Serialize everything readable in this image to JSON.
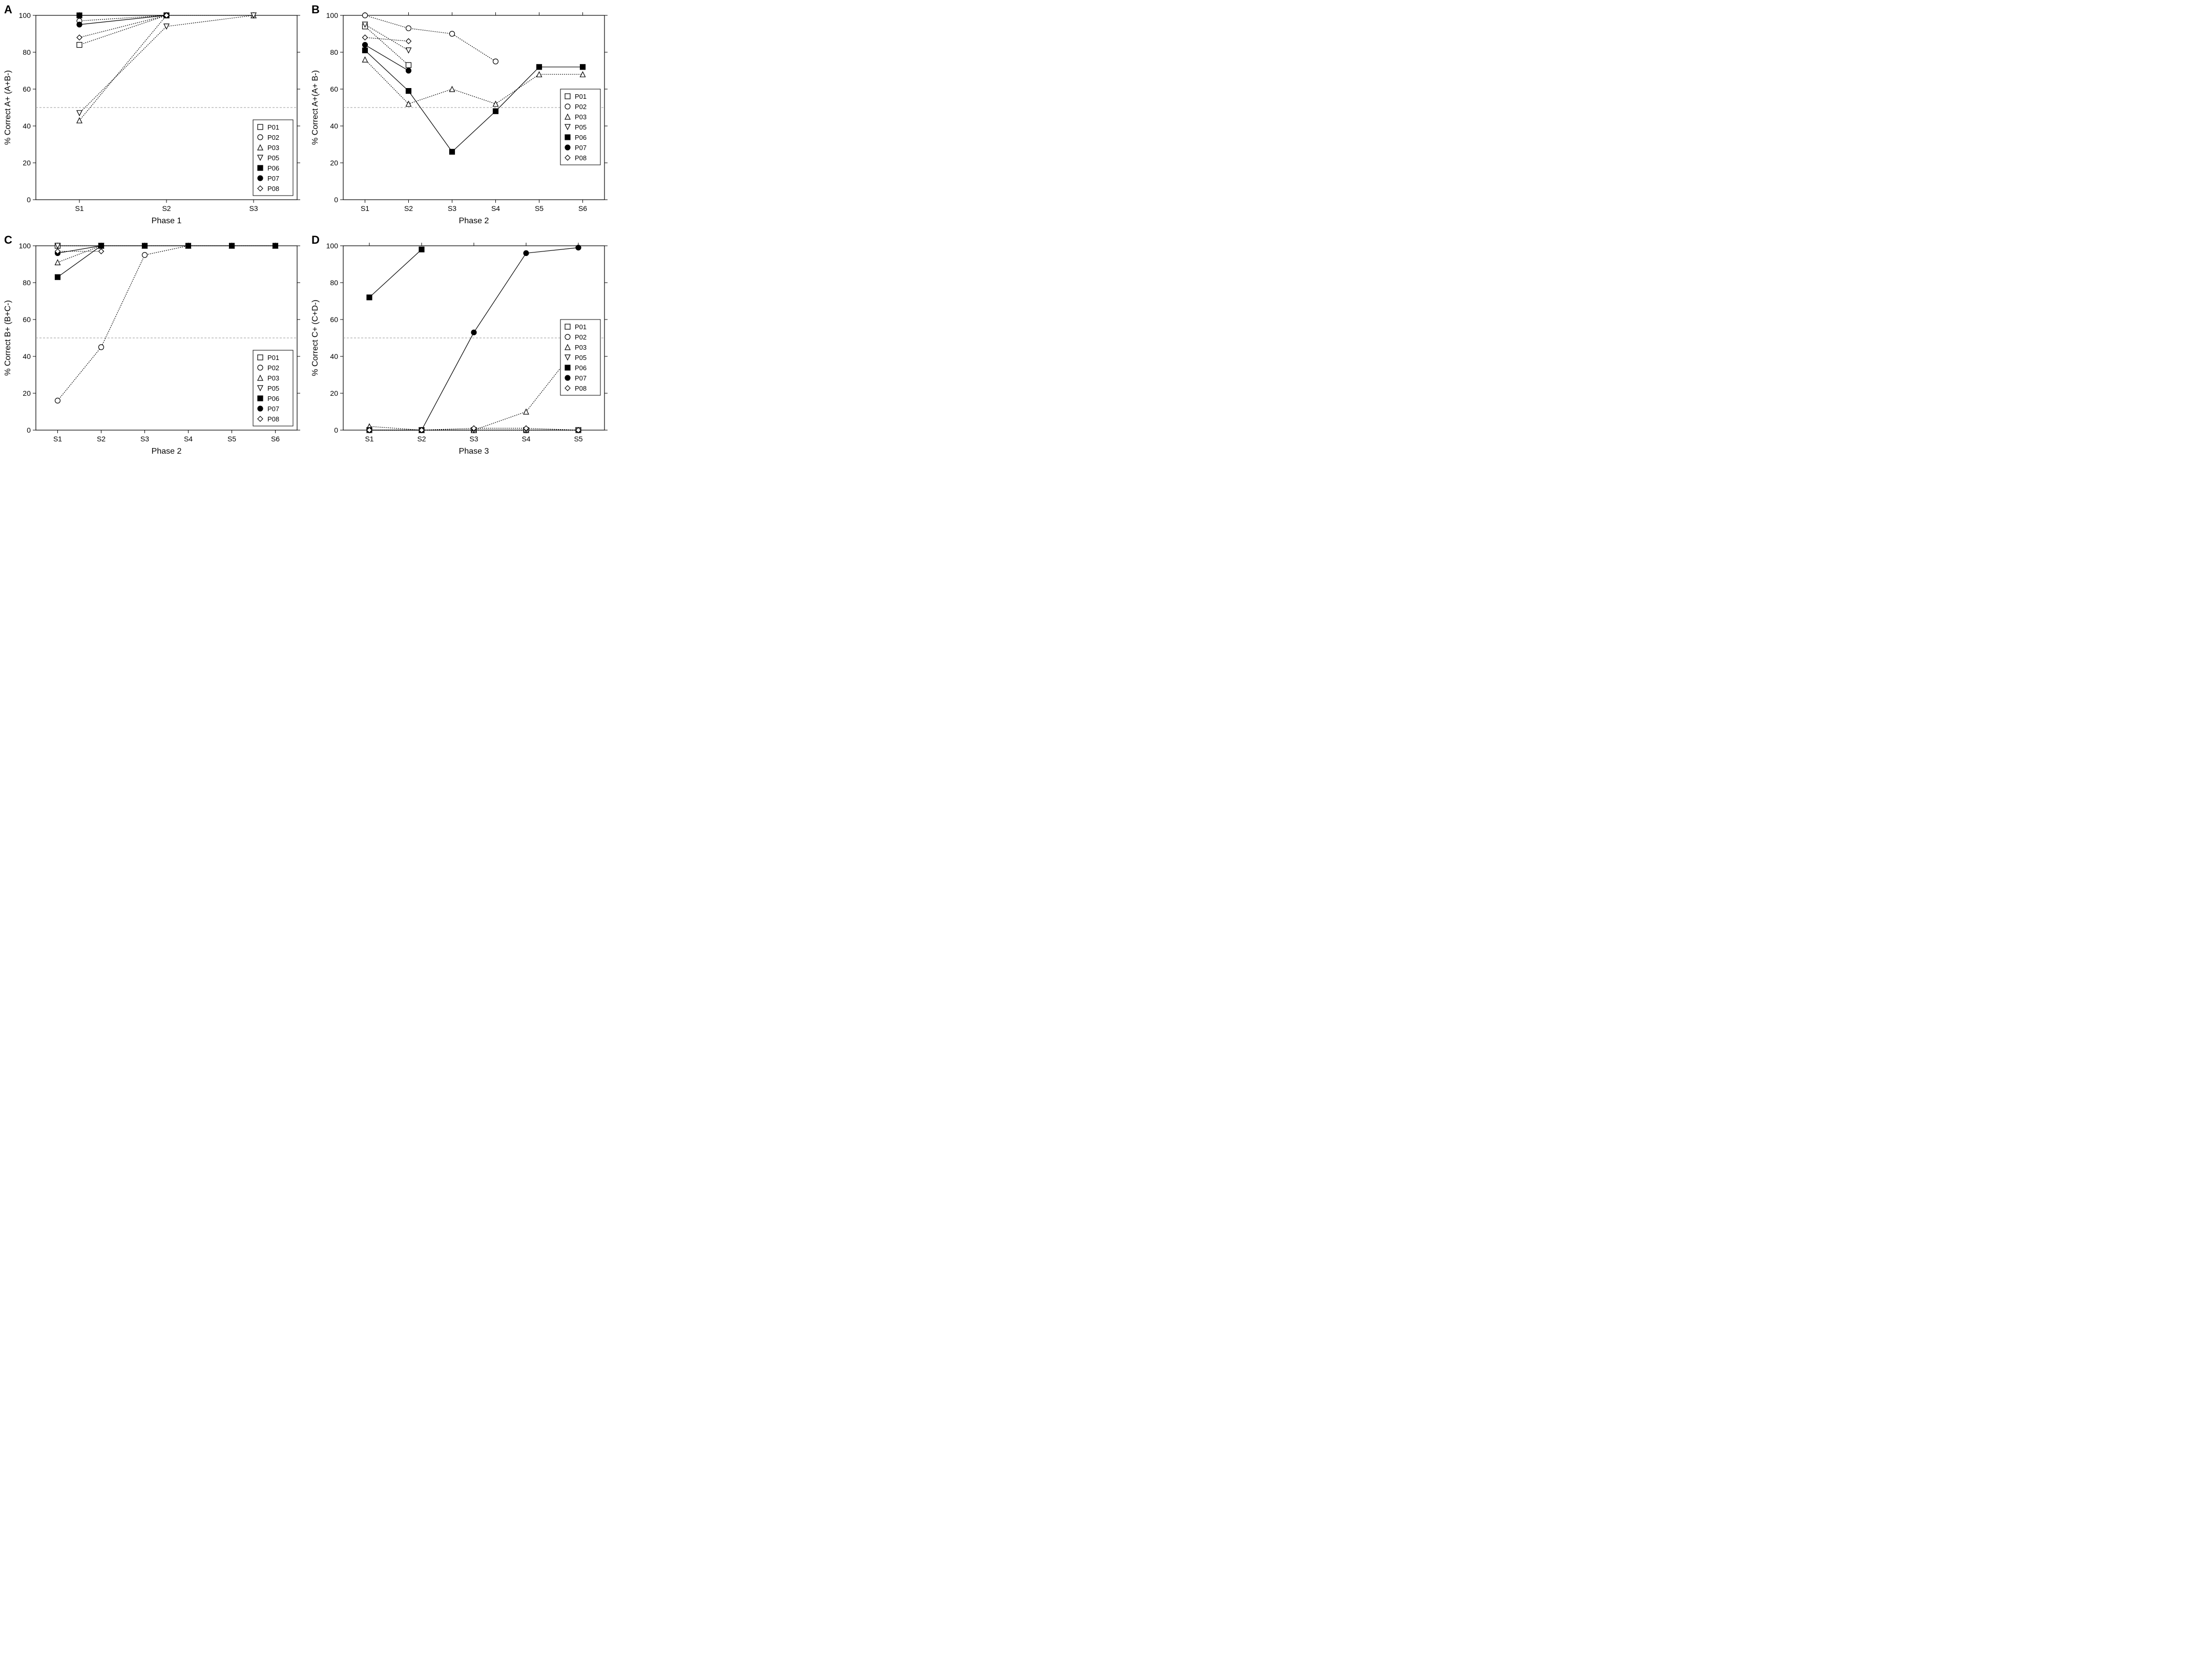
{
  "global": {
    "background_color": "#ffffff",
    "axis_color": "#000000",
    "grid_color": "#9a9a9a",
    "reference_y": 50,
    "label_fontsize": 16,
    "tick_fontsize": 14,
    "legend_fontsize": 13,
    "panel_label_fontsize": 22,
    "linewidth": 1.2,
    "markersize": 5,
    "series_style": {
      "P01": {
        "marker": "square",
        "fill": "none",
        "stroke": "#000000",
        "dash": "2 2"
      },
      "P02": {
        "marker": "circle",
        "fill": "none",
        "stroke": "#000000",
        "dash": "2 2"
      },
      "P03": {
        "marker": "triangle-up",
        "fill": "none",
        "stroke": "#000000",
        "dash": "2 2"
      },
      "P05": {
        "marker": "triangle-down",
        "fill": "none",
        "stroke": "#000000",
        "dash": "2 2"
      },
      "P06": {
        "marker": "square",
        "fill": "#000000",
        "stroke": "#000000",
        "dash": "none"
      },
      "P07": {
        "marker": "circle",
        "fill": "#000000",
        "stroke": "#000000",
        "dash": "none"
      },
      "P08": {
        "marker": "diamond",
        "fill": "none",
        "stroke": "#000000",
        "dash": "2 2"
      }
    },
    "series_order": [
      "P01",
      "P02",
      "P03",
      "P05",
      "P06",
      "P07",
      "P08"
    ]
  },
  "panels": {
    "A": {
      "title_letter": "A",
      "x_categories": [
        "S1",
        "S2",
        "S3"
      ],
      "xlabel": "Phase 1",
      "ylabel": "% Correct A+ (A+B-)",
      "ylim": [
        0,
        100
      ],
      "ytick_step": 20,
      "legend_pos": "bottom-right",
      "data": {
        "P01": [
          84,
          100,
          null
        ],
        "P02": [
          97,
          100,
          null
        ],
        "P03": [
          43,
          100,
          100
        ],
        "P05": [
          47,
          94,
          100
        ],
        "P06": [
          100,
          100,
          null
        ],
        "P07": [
          95,
          100,
          null
        ],
        "P08": [
          88,
          100,
          null
        ]
      }
    },
    "B": {
      "title_letter": "B",
      "x_categories": [
        "S1",
        "S2",
        "S3",
        "S4",
        "S5",
        "S6"
      ],
      "xlabel": "Phase 2",
      "ylabel": "% Correct A+(A+ B-)",
      "ylim": [
        0,
        100
      ],
      "ytick_step": 20,
      "legend_pos": "middle-right",
      "data": {
        "P01": [
          94,
          73,
          null,
          null,
          null,
          null
        ],
        "P02": [
          100,
          93,
          90,
          75,
          null,
          null
        ],
        "P03": [
          76,
          52,
          60,
          52,
          68,
          68
        ],
        "P05": [
          95,
          81,
          null,
          null,
          null,
          null
        ],
        "P06": [
          81,
          59,
          26,
          48,
          72,
          72
        ],
        "P07": [
          84,
          70,
          null,
          null,
          null,
          null
        ],
        "P08": [
          88,
          86,
          null,
          null,
          null,
          null
        ]
      }
    },
    "C": {
      "title_letter": "C",
      "x_categories": [
        "S1",
        "S2",
        "S3",
        "S4",
        "S5",
        "S6"
      ],
      "xlabel": "Phase 2",
      "ylabel": "% Correct B+ (B+C-)",
      "ylim": [
        0,
        100
      ],
      "ytick_step": 20,
      "legend_pos": "bottom-right",
      "data": {
        "P01": [
          100,
          100,
          null,
          null,
          null,
          null
        ],
        "P02": [
          16,
          45,
          95,
          100,
          null,
          null
        ],
        "P03": [
          91,
          100,
          100,
          100,
          100,
          100
        ],
        "P05": [
          100,
          100,
          null,
          null,
          null,
          null
        ],
        "P06": [
          83,
          100,
          100,
          100,
          100,
          100
        ],
        "P07": [
          96,
          100,
          null,
          null,
          null,
          null
        ],
        "P08": [
          97,
          97,
          null,
          null,
          null,
          null
        ]
      }
    },
    "D": {
      "title_letter": "D",
      "x_categories": [
        "S1",
        "S2",
        "S3",
        "S4",
        "S5"
      ],
      "xlabel": "Phase 3",
      "ylabel": "% Correct C+ (C+D-)",
      "ylim": [
        0,
        100
      ],
      "ytick_step": 20,
      "legend_pos": "middle-right",
      "data": {
        "P01": [
          0,
          0,
          0,
          0,
          0
        ],
        "P02": [
          0,
          0,
          0,
          0,
          0
        ],
        "P03": [
          2,
          0,
          0,
          10,
          46
        ],
        "P05": [
          0,
          0,
          0,
          0,
          0
        ],
        "P06": [
          72,
          98,
          null,
          null,
          null
        ],
        "P07": [
          0,
          0,
          53,
          96,
          99
        ],
        "P08": [
          0,
          0,
          1,
          1,
          0
        ]
      }
    }
  }
}
